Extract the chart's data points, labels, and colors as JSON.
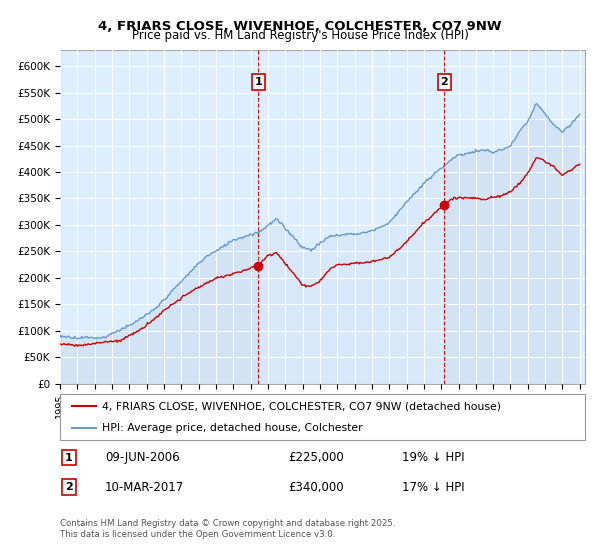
{
  "title": "4, FRIARS CLOSE, WIVENHOE, COLCHESTER, CO7 9NW",
  "subtitle": "Price paid vs. HM Land Registry's House Price Index (HPI)",
  "ylim": [
    0,
    620000
  ],
  "yticks": [
    0,
    50000,
    100000,
    150000,
    200000,
    250000,
    300000,
    350000,
    400000,
    450000,
    500000,
    550000,
    600000
  ],
  "ytick_labels": [
    "£0",
    "£50K",
    "£100K",
    "£150K",
    "£200K",
    "£250K",
    "£300K",
    "£350K",
    "£400K",
    "£450K",
    "£500K",
    "£550K",
    "£600K"
  ],
  "background_color": "#ffffff",
  "plot_bg_color": "#ddeeff",
  "grid_color": "#ffffff",
  "sale1_date": 2006.44,
  "sale1_price": 225000,
  "sale2_date": 2017.19,
  "sale2_price": 340000,
  "legend_line1": "4, FRIARS CLOSE, WIVENHOE, COLCHESTER, CO7 9NW (detached house)",
  "legend_line2": "HPI: Average price, detached house, Colchester",
  "footer_text": "Contains HM Land Registry data © Crown copyright and database right 2025.\nThis data is licensed under the Open Government Licence v3.0.",
  "red_line_color": "#cc0000",
  "blue_line_color": "#6699cc",
  "blue_fill_color": "#ccddf0",
  "shade_between_sales": true
}
